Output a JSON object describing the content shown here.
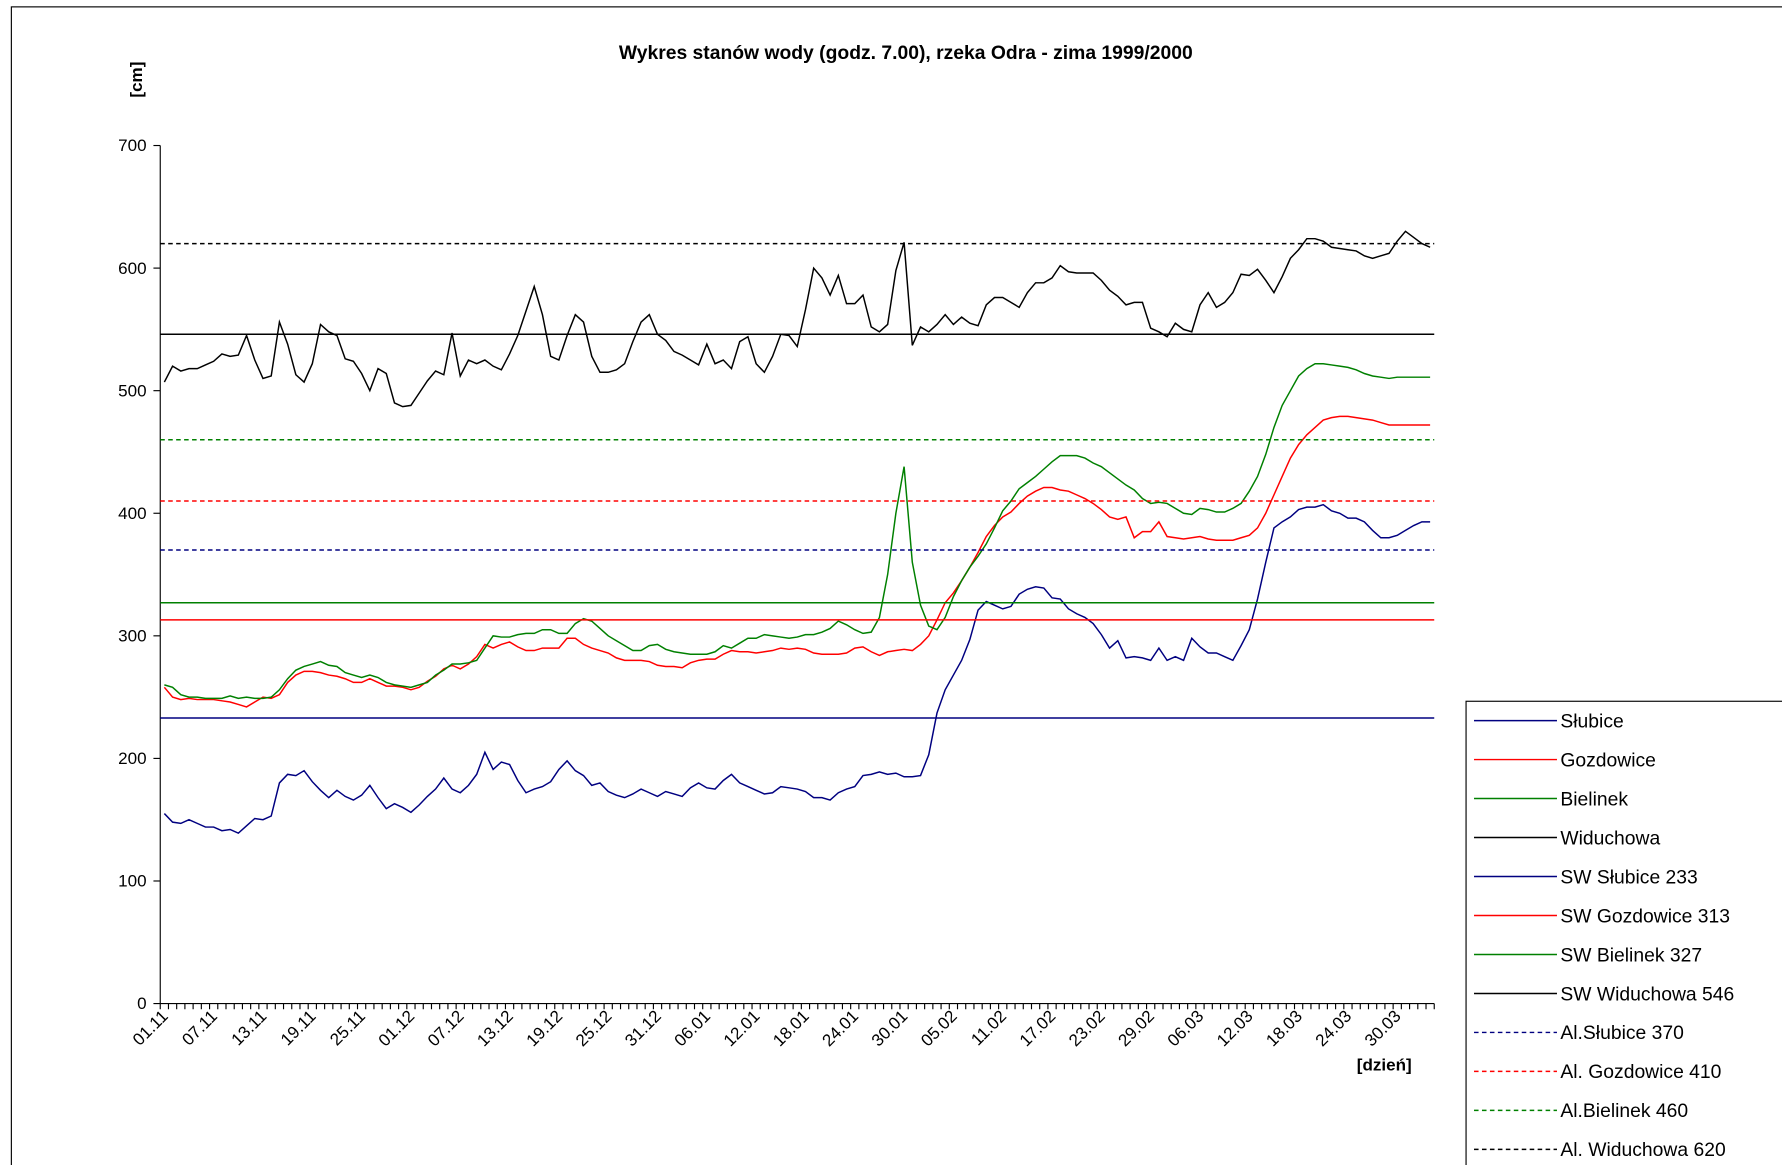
{
  "chart_data": {
    "type": "line",
    "title": "Wykres stanów wody (godz. 7.00), rzeka Odra - zima 1999/2000",
    "y_label": "[cm]",
    "x_label": "[dzień]",
    "ylim": [
      0,
      700
    ],
    "yticks": [
      0,
      100,
      200,
      300,
      400,
      500,
      600,
      700
    ],
    "legend": "right",
    "categories": [
      "01.11",
      null,
      null,
      null,
      null,
      null,
      "07.11",
      null,
      null,
      null,
      null,
      null,
      "13.11",
      null,
      null,
      null,
      null,
      null,
      "19.11",
      null,
      null,
      null,
      null,
      null,
      "25.11",
      null,
      null,
      null,
      null,
      null,
      "01.12",
      null,
      null,
      null,
      null,
      null,
      "07.12",
      null,
      null,
      null,
      null,
      null,
      "13.12",
      null,
      null,
      null,
      null,
      null,
      "19.12",
      null,
      null,
      null,
      null,
      null,
      "25.12",
      null,
      null,
      null,
      null,
      null,
      "31.12",
      null,
      null,
      null,
      null,
      null,
      "06.01",
      null,
      null,
      null,
      null,
      null,
      "12.01",
      null,
      null,
      null,
      null,
      null,
      "18.01",
      null,
      null,
      null,
      null,
      null,
      "24.01",
      null,
      null,
      null,
      null,
      null,
      "30.01",
      null,
      null,
      null,
      null,
      null,
      "05.02",
      null,
      null,
      null,
      null,
      null,
      "11.02",
      null,
      null,
      null,
      null,
      null,
      "17.02",
      null,
      null,
      null,
      null,
      null,
      "23.02",
      null,
      null,
      null,
      null,
      null,
      "29.02",
      null,
      null,
      null,
      null,
      null,
      "06.03",
      null,
      null,
      null,
      null,
      null,
      "12.03",
      null,
      null,
      null,
      null,
      null,
      "18.03",
      null,
      null,
      null,
      null,
      null,
      "24.03",
      null,
      null,
      null,
      null,
      null,
      "30.03",
      null,
      null,
      null,
      null
    ],
    "series": [
      {
        "name": "Słubice",
        "color": "#000080",
        "values": [
          155,
          148,
          147,
          150,
          147,
          144,
          144,
          141,
          142,
          139,
          145,
          151,
          150,
          153,
          180,
          187,
          186,
          190,
          181,
          174,
          168,
          174,
          169,
          166,
          170,
          178,
          168,
          159,
          163,
          160,
          156,
          162,
          169,
          175,
          184,
          175,
          172,
          178,
          187,
          205,
          191,
          197,
          195,
          182,
          172,
          175,
          177,
          181,
          191,
          198,
          190,
          186,
          178,
          180,
          173,
          170,
          168,
          171,
          175,
          172,
          169,
          173,
          171,
          169,
          176,
          180,
          176,
          175,
          182,
          187,
          180,
          177,
          174,
          171,
          172,
          177,
          176,
          175,
          173,
          168,
          168,
          166,
          172,
          175,
          177,
          186,
          187,
          189,
          187,
          188,
          185,
          185,
          186,
          203,
          237,
          256,
          268,
          280,
          297,
          321,
          328,
          325,
          322,
          324,
          334,
          338,
          340,
          339,
          331,
          330,
          322,
          318,
          315,
          310,
          301,
          290,
          296,
          282,
          283,
          282,
          280,
          290,
          280,
          283,
          280,
          298,
          291,
          286,
          286,
          283,
          280,
          292,
          305,
          330,
          360,
          388,
          393,
          397,
          403,
          405,
          405,
          407,
          402,
          400,
          396,
          396,
          393,
          386,
          380,
          380,
          382,
          386,
          390,
          393,
          393
        ]
      },
      {
        "name": "Gozdowice",
        "color": "#ff0000",
        "values": [
          258,
          250,
          248,
          249,
          248,
          248,
          248,
          247,
          246,
          244,
          242,
          246,
          250,
          249,
          252,
          262,
          268,
          271,
          271,
          270,
          268,
          267,
          265,
          262,
          262,
          265,
          262,
          259,
          259,
          258,
          256,
          258,
          263,
          267,
          273,
          276,
          273,
          277,
          283,
          293,
          290,
          293,
          295,
          291,
          288,
          288,
          290,
          290,
          290,
          298,
          298,
          293,
          290,
          288,
          286,
          282,
          280,
          280,
          280,
          279,
          276,
          275,
          275,
          274,
          278,
          280,
          281,
          281,
          285,
          288,
          287,
          287,
          286,
          287,
          288,
          290,
          289,
          290,
          289,
          286,
          285,
          285,
          285,
          286,
          290,
          291,
          287,
          284,
          287,
          288,
          289,
          288,
          293,
          300,
          313,
          327,
          335,
          345,
          356,
          368,
          381,
          390,
          397,
          401,
          408,
          414,
          418,
          421,
          421,
          419,
          418,
          415,
          412,
          408,
          403,
          397,
          395,
          397,
          380,
          385,
          385,
          393,
          381,
          380,
          379,
          380,
          381,
          379,
          378,
          378,
          378,
          380,
          382,
          388,
          400,
          415,
          430,
          445,
          456,
          464,
          470,
          476,
          478,
          479,
          479,
          478,
          477,
          476,
          474,
          472,
          472,
          472,
          472,
          472,
          472
        ]
      },
      {
        "name": "Bielinek",
        "color": "#008000",
        "values": [
          260,
          258,
          252,
          250,
          250,
          249,
          249,
          249,
          251,
          249,
          250,
          249,
          249,
          250,
          256,
          265,
          272,
          275,
          277,
          279,
          276,
          275,
          270,
          268,
          266,
          268,
          266,
          262,
          260,
          259,
          258,
          260,
          262,
          268,
          272,
          277,
          277,
          278,
          280,
          290,
          300,
          299,
          299,
          301,
          302,
          302,
          305,
          305,
          302,
          302,
          310,
          314,
          312,
          306,
          300,
          296,
          292,
          288,
          288,
          292,
          293,
          289,
          287,
          286,
          285,
          285,
          285,
          287,
          292,
          290,
          294,
          298,
          298,
          301,
          300,
          299,
          298,
          299,
          301,
          301,
          303,
          306,
          312,
          309,
          305,
          302,
          303,
          315,
          350,
          400,
          438,
          360,
          325,
          308,
          305,
          315,
          332,
          345,
          356,
          365,
          375,
          388,
          402,
          410,
          420,
          425,
          430,
          436,
          442,
          447,
          447,
          447,
          445,
          441,
          438,
          433,
          428,
          423,
          419,
          412,
          408,
          409,
          408,
          404,
          400,
          399,
          404,
          403,
          401,
          401,
          404,
          408,
          418,
          430,
          448,
          470,
          488,
          500,
          512,
          518,
          522,
          522,
          521,
          520,
          519,
          517,
          514,
          512,
          511,
          510,
          511,
          511,
          511,
          511,
          511
        ]
      },
      {
        "name": "Widuchowa",
        "color": "#000000",
        "values": [
          507,
          520,
          516,
          518,
          518,
          521,
          524,
          530,
          528,
          529,
          545,
          525,
          510,
          512,
          556,
          538,
          513,
          507,
          522,
          554,
          548,
          545,
          526,
          524,
          514,
          500,
          518,
          514,
          490,
          487,
          488,
          498,
          508,
          516,
          513,
          547,
          512,
          525,
          522,
          525,
          520,
          517,
          530,
          545,
          565,
          585,
          562,
          528,
          525,
          545,
          562,
          556,
          528,
          515,
          515,
          517,
          522,
          540,
          556,
          562,
          546,
          541,
          532,
          529,
          525,
          521,
          538,
          522,
          525,
          518,
          540,
          544,
          522,
          515,
          528,
          546,
          545,
          536,
          566,
          600,
          592,
          578,
          594,
          571,
          571,
          578,
          552,
          548,
          554,
          598,
          621,
          537,
          552,
          548,
          554,
          562,
          554,
          560,
          555,
          553,
          570,
          576,
          576,
          572,
          568,
          580,
          588,
          588,
          592,
          602,
          597,
          596,
          596,
          596,
          590,
          582,
          577,
          570,
          572,
          572,
          551,
          548,
          544,
          555,
          550,
          548,
          570,
          580,
          568,
          572,
          580,
          595,
          594,
          599,
          590,
          580,
          593,
          608,
          615,
          624,
          624,
          622,
          617,
          616,
          615,
          614,
          610,
          608,
          610,
          612,
          622,
          630,
          625,
          620,
          617
        ]
      },
      {
        "name": "SW Słubice 233",
        "color": "#000080",
        "value": 233
      },
      {
        "name": "SW Gozdowice 313",
        "color": "#ff0000",
        "value": 313
      },
      {
        "name": "SW Bielinek 327",
        "color": "#008000",
        "value": 327
      },
      {
        "name": "SW Widuchowa 546",
        "color": "#000000",
        "value": 546
      },
      {
        "name": "Al.Słubice 370",
        "color": "#000080",
        "value": 370,
        "dashed": true
      },
      {
        "name": "Al. Gozdowice 410",
        "color": "#ff0000",
        "value": 410,
        "dashed": true
      },
      {
        "name": "Al.Bielinek 460",
        "color": "#008000",
        "value": 460,
        "dashed": true
      },
      {
        "name": "Al. Widuchowa 620",
        "color": "#000000",
        "value": 620,
        "dashed": true
      }
    ]
  }
}
